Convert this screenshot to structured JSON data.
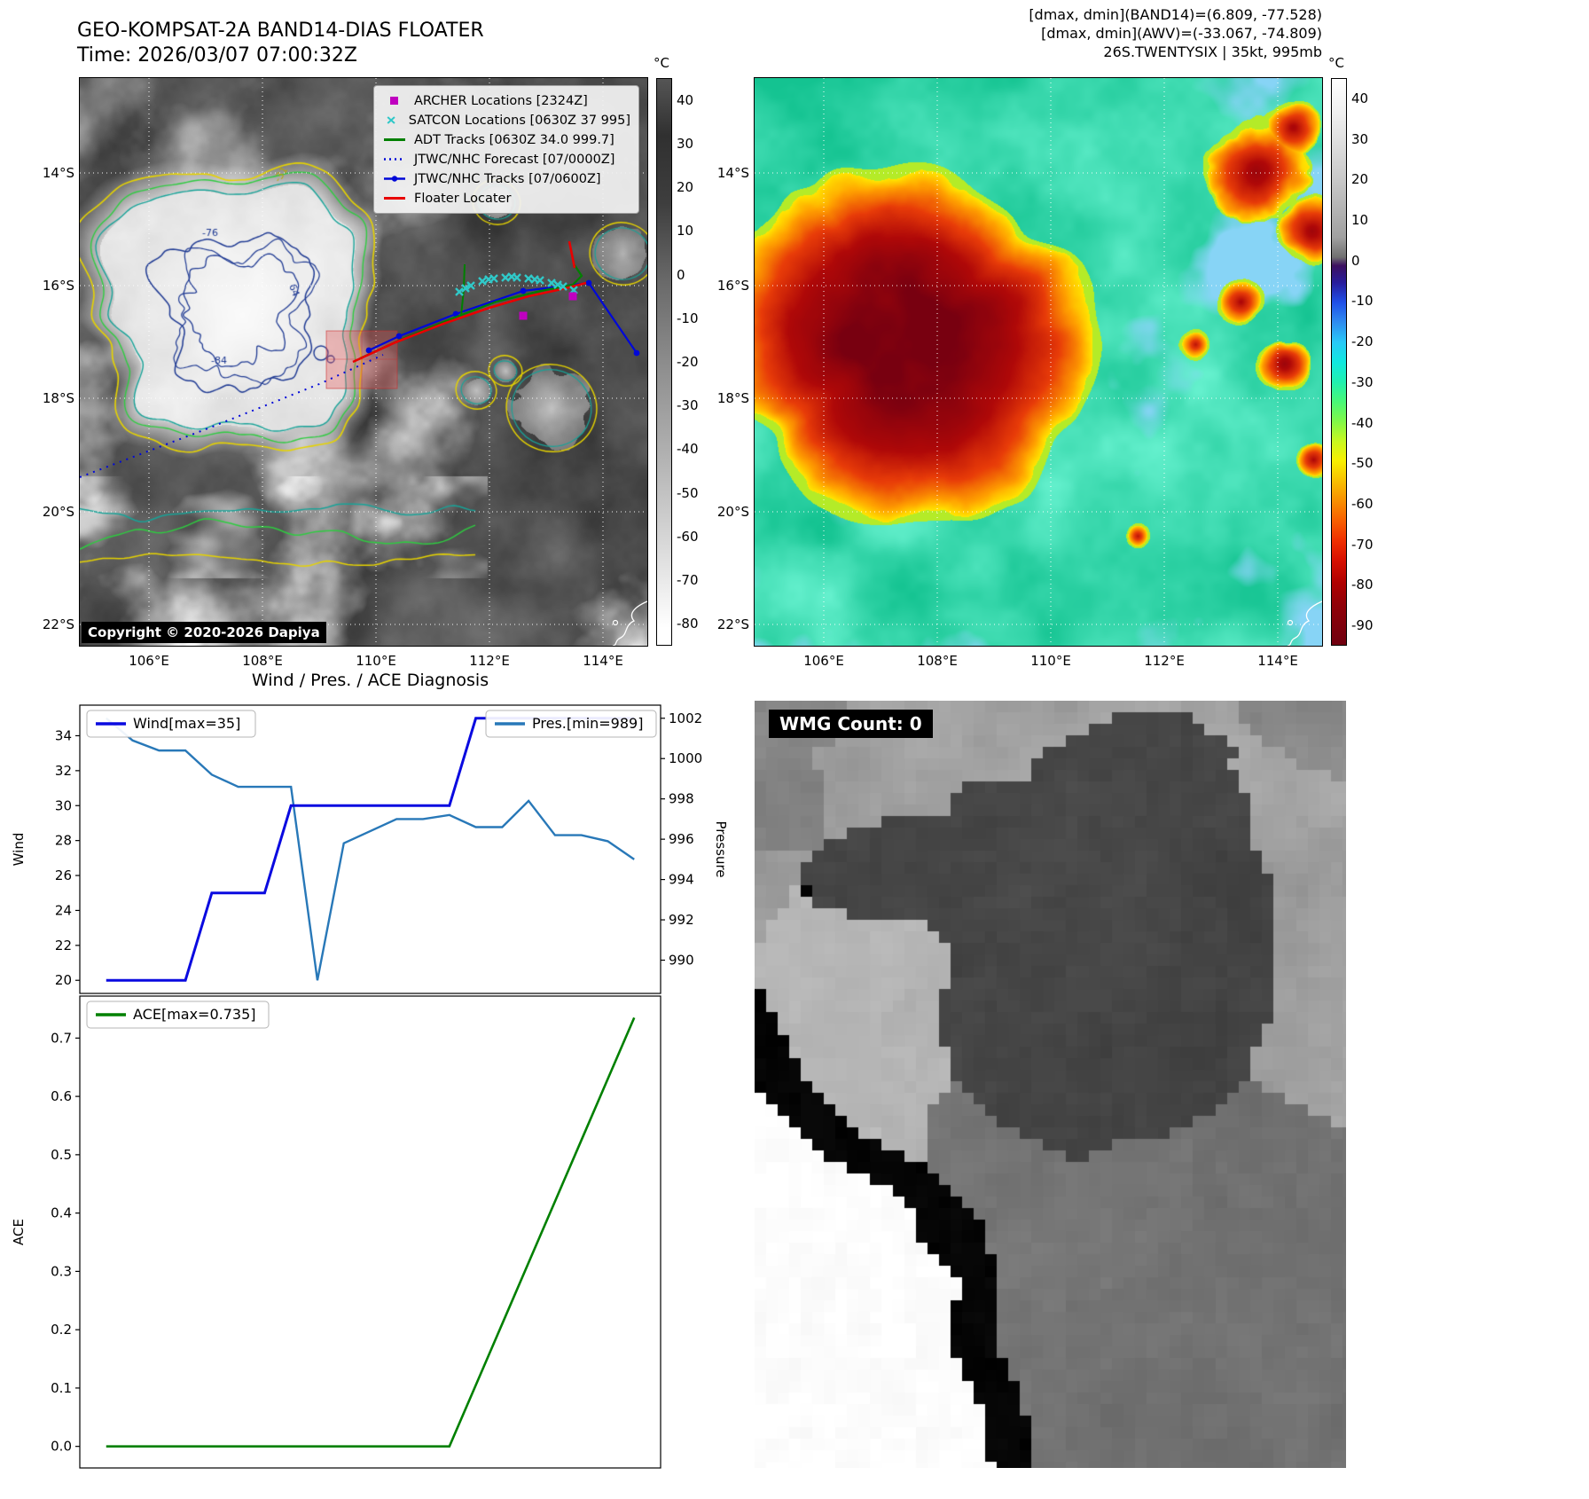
{
  "colors": {
    "wind_line": "#0a0ae0",
    "pres_line": "#2878b8",
    "ace_line": "#008000",
    "track_red": "#e80000",
    "track_green": "#008000",
    "track_blue": "#0008d8",
    "satcon_cyan": "#30c8c8",
    "archer_magenta": "#c000c0"
  },
  "header": {
    "title_line1": "GEO-KOMPSAT-2A BAND14-DIAS FLOATER",
    "title_line2": "Time: 2026/03/07 07:00:32Z",
    "right_line1": "[dmax, dmin](BAND14)=(6.809, -77.528)",
    "right_line2": "[dmax, dmin](AWV)=(-33.067, -74.809)",
    "right_line3": "26S.TWENTYSIX | 35kt, 995mb"
  },
  "band14_map": {
    "legend": [
      {
        "label": "ARCHER Locations [2324Z]",
        "marker": "square",
        "color": "#c000c0"
      },
      {
        "label": "SATCON Locations [0630Z 37 995]",
        "marker": "x",
        "color": "#30c8c8"
      },
      {
        "label": "ADT Tracks [0630Z 34.0 999.7]",
        "marker": "line",
        "color": "#008000"
      },
      {
        "label": "JTWC/NHC Forecast [07/0000Z]",
        "marker": "dotted",
        "color": "#0008d8"
      },
      {
        "label": "JTWC/NHC Tracks [07/0600Z]",
        "marker": "line-marker",
        "color": "#0008d8"
      },
      {
        "label": "Floater Locater",
        "marker": "line",
        "color": "#e80000"
      }
    ],
    "copyright": "Copyright © 2020-2026 Dapiya",
    "colorbar_unit": "°C",
    "colorbar_ticks": [
      "40",
      "30",
      "20",
      "10",
      "0",
      "-10",
      "-20",
      "-30",
      "-40",
      "-50",
      "-60",
      "-70",
      "-80"
    ],
    "lat_labels": [
      "14°S",
      "16°S",
      "18°S",
      "20°S",
      "22°S"
    ],
    "lon_labels": [
      "106°E",
      "108°E",
      "110°E",
      "112°E",
      "114°E"
    ],
    "contour_labels": [
      "-76",
      "-31",
      "-84",
      "64"
    ]
  },
  "awv_map": {
    "colorbar_unit": "°C",
    "colorbar_ticks": [
      "40",
      "30",
      "20",
      "10",
      "0",
      "-10",
      "-20",
      "-30",
      "-40",
      "-50",
      "-60",
      "-70",
      "-80",
      "-90"
    ],
    "lat_labels": [
      "14°S",
      "16°S",
      "18°S",
      "20°S",
      "22°S"
    ],
    "lon_labels": [
      "106°E",
      "108°E",
      "110°E",
      "112°E",
      "114°E"
    ]
  },
  "diagnosis": {
    "title": "Wind / Pres. / ACE Diagnosis"
  },
  "wmg": {
    "label": "WMG Count: 0"
  },
  "chart_data": [
    {
      "type": "line",
      "title": "Wind / Pres. / ACE Diagnosis",
      "ylabel": "Wind",
      "ylabel_right": "Pressure",
      "ylim": [
        19.25,
        35.75
      ],
      "ylim_right": [
        988.35,
        1002.65
      ],
      "yticks": [
        "20",
        "22",
        "24",
        "26",
        "28",
        "30",
        "32",
        "34"
      ],
      "yticks_right": [
        "990",
        "992",
        "994",
        "996",
        "998",
        "1000",
        "1002"
      ],
      "grid": false,
      "x": [
        0,
        1,
        2,
        3,
        4,
        5,
        6,
        7,
        8,
        9,
        10,
        11,
        12,
        13,
        14,
        15,
        16,
        17,
        18,
        19,
        20
      ],
      "series": [
        {
          "name": "Wind[max=35]",
          "axis": "left",
          "values": [
            20,
            20,
            20,
            20,
            25,
            25,
            25,
            30,
            30,
            30,
            30,
            30,
            30,
            30,
            35,
            35,
            35,
            35,
            35,
            35,
            35
          ]
        },
        {
          "name": "Pres.[min=989]",
          "axis": "right",
          "values": [
            1002,
            1000.9,
            1000.4,
            1000.4,
            999.2,
            998.6,
            998.6,
            998.6,
            989,
            995.8,
            996.4,
            997,
            997,
            997.2,
            996.6,
            996.6,
            997.9,
            996.2,
            996.2,
            995.9,
            995
          ]
        }
      ]
    },
    {
      "type": "line",
      "ylabel": "ACE",
      "ylim": [
        -0.037,
        0.772
      ],
      "yticks": [
        "0.0",
        "0.1",
        "0.2",
        "0.3",
        "0.4",
        "0.5",
        "0.6",
        "0.7"
      ],
      "grid": false,
      "x": [
        0,
        1,
        2,
        3,
        4,
        5,
        6,
        7,
        8,
        9,
        10,
        11,
        12,
        13,
        14,
        15,
        16,
        17,
        18,
        19,
        20
      ],
      "series": [
        {
          "name": "ACE[max=0.735]",
          "values": [
            0,
            0,
            0,
            0,
            0,
            0,
            0,
            0,
            0,
            0,
            0,
            0,
            0,
            0,
            0.105,
            0.21,
            0.315,
            0.42,
            0.525,
            0.63,
            0.735
          ]
        }
      ]
    }
  ]
}
